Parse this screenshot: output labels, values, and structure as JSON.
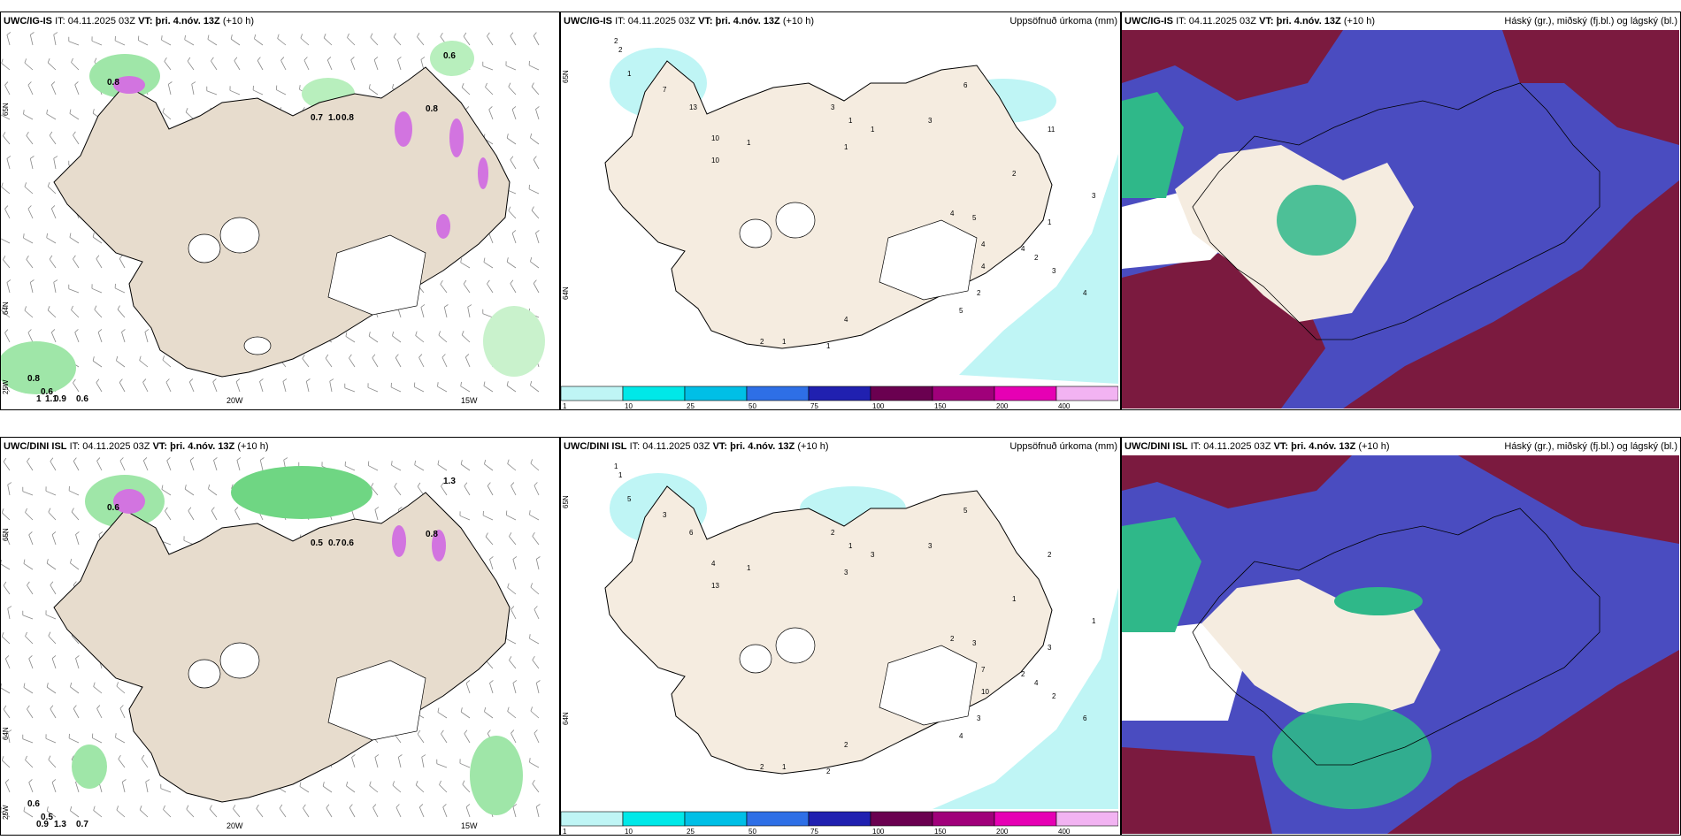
{
  "issue_time": "04.11.2025 03Z",
  "valid_time": "þri. 4.nóv. 13Z",
  "lead": "(+10 h)",
  "it_label": "IT:",
  "vt_label": "VT:",
  "rows": [
    {
      "model": "UWC/IG-IS",
      "wind_labels": [
        "0.6",
        "0.8",
        "0.8",
        "0.7",
        "1.0",
        "0.8",
        "0.6",
        "0.6",
        "0.9",
        "1",
        "0.8",
        "1.1"
      ],
      "precip_labels": [
        "2",
        "2",
        "1",
        "7",
        "13",
        "10",
        "10",
        "1",
        "3",
        "1",
        "1",
        "1",
        "3",
        "6",
        "11",
        "2",
        "4",
        "5",
        "4",
        "4",
        "4",
        "2",
        "1",
        "3",
        "3",
        "4",
        "5",
        "2",
        "1",
        "2",
        "1",
        "4"
      ],
      "lon_labels": [
        "20W",
        "15W"
      ],
      "lat_labels": [
        "65N",
        "64N",
        "25W"
      ]
    },
    {
      "model": "UWC/DINI ISL",
      "wind_labels": [
        "1.3",
        "0.8",
        "0.6",
        "0.5",
        "0.7",
        "0.6",
        "0.7",
        "0.5",
        "1.3",
        "0.9",
        "0.6"
      ],
      "precip_labels": [
        "1",
        "1",
        "5",
        "3",
        "6",
        "4",
        "13",
        "1",
        "2",
        "1",
        "3",
        "3",
        "3",
        "5",
        "2",
        "1",
        "2",
        "3",
        "7",
        "10",
        "2",
        "4",
        "3",
        "1",
        "2",
        "6",
        "4",
        "3",
        "1",
        "2",
        "2",
        "2"
      ],
      "lon_labels": [
        "20W",
        "15W"
      ],
      "lat_labels": [
        "65N",
        "64N",
        "25W"
      ]
    }
  ],
  "precip_title": "Uppsöfnuð úrkoma (mm)",
  "cloud_title": "Háský (gr.), miðský (fj.bl.) og lágský (bl.)",
  "colorbar": {
    "ticks": [
      "1",
      "10",
      "25",
      "50",
      "75",
      "100",
      "150",
      "200",
      "400"
    ],
    "colors": [
      "#bff5f5",
      "#00e8e8",
      "#00bfe6",
      "#2e6fe6",
      "#2020b0",
      "#6a0050",
      "#a0007a",
      "#e600b4",
      "#f2b3f2"
    ]
  },
  "colors": {
    "land": "#f5ece0",
    "land_wind": "#e7dccd",
    "precip_light": "#bff5f5",
    "cloud_high": "#7b1a3f",
    "cloud_mid": "#4a4cc0",
    "cloud_low": "#2fb889",
    "wind_green": "#9fe6a8",
    "magenta": "#d274e0"
  }
}
